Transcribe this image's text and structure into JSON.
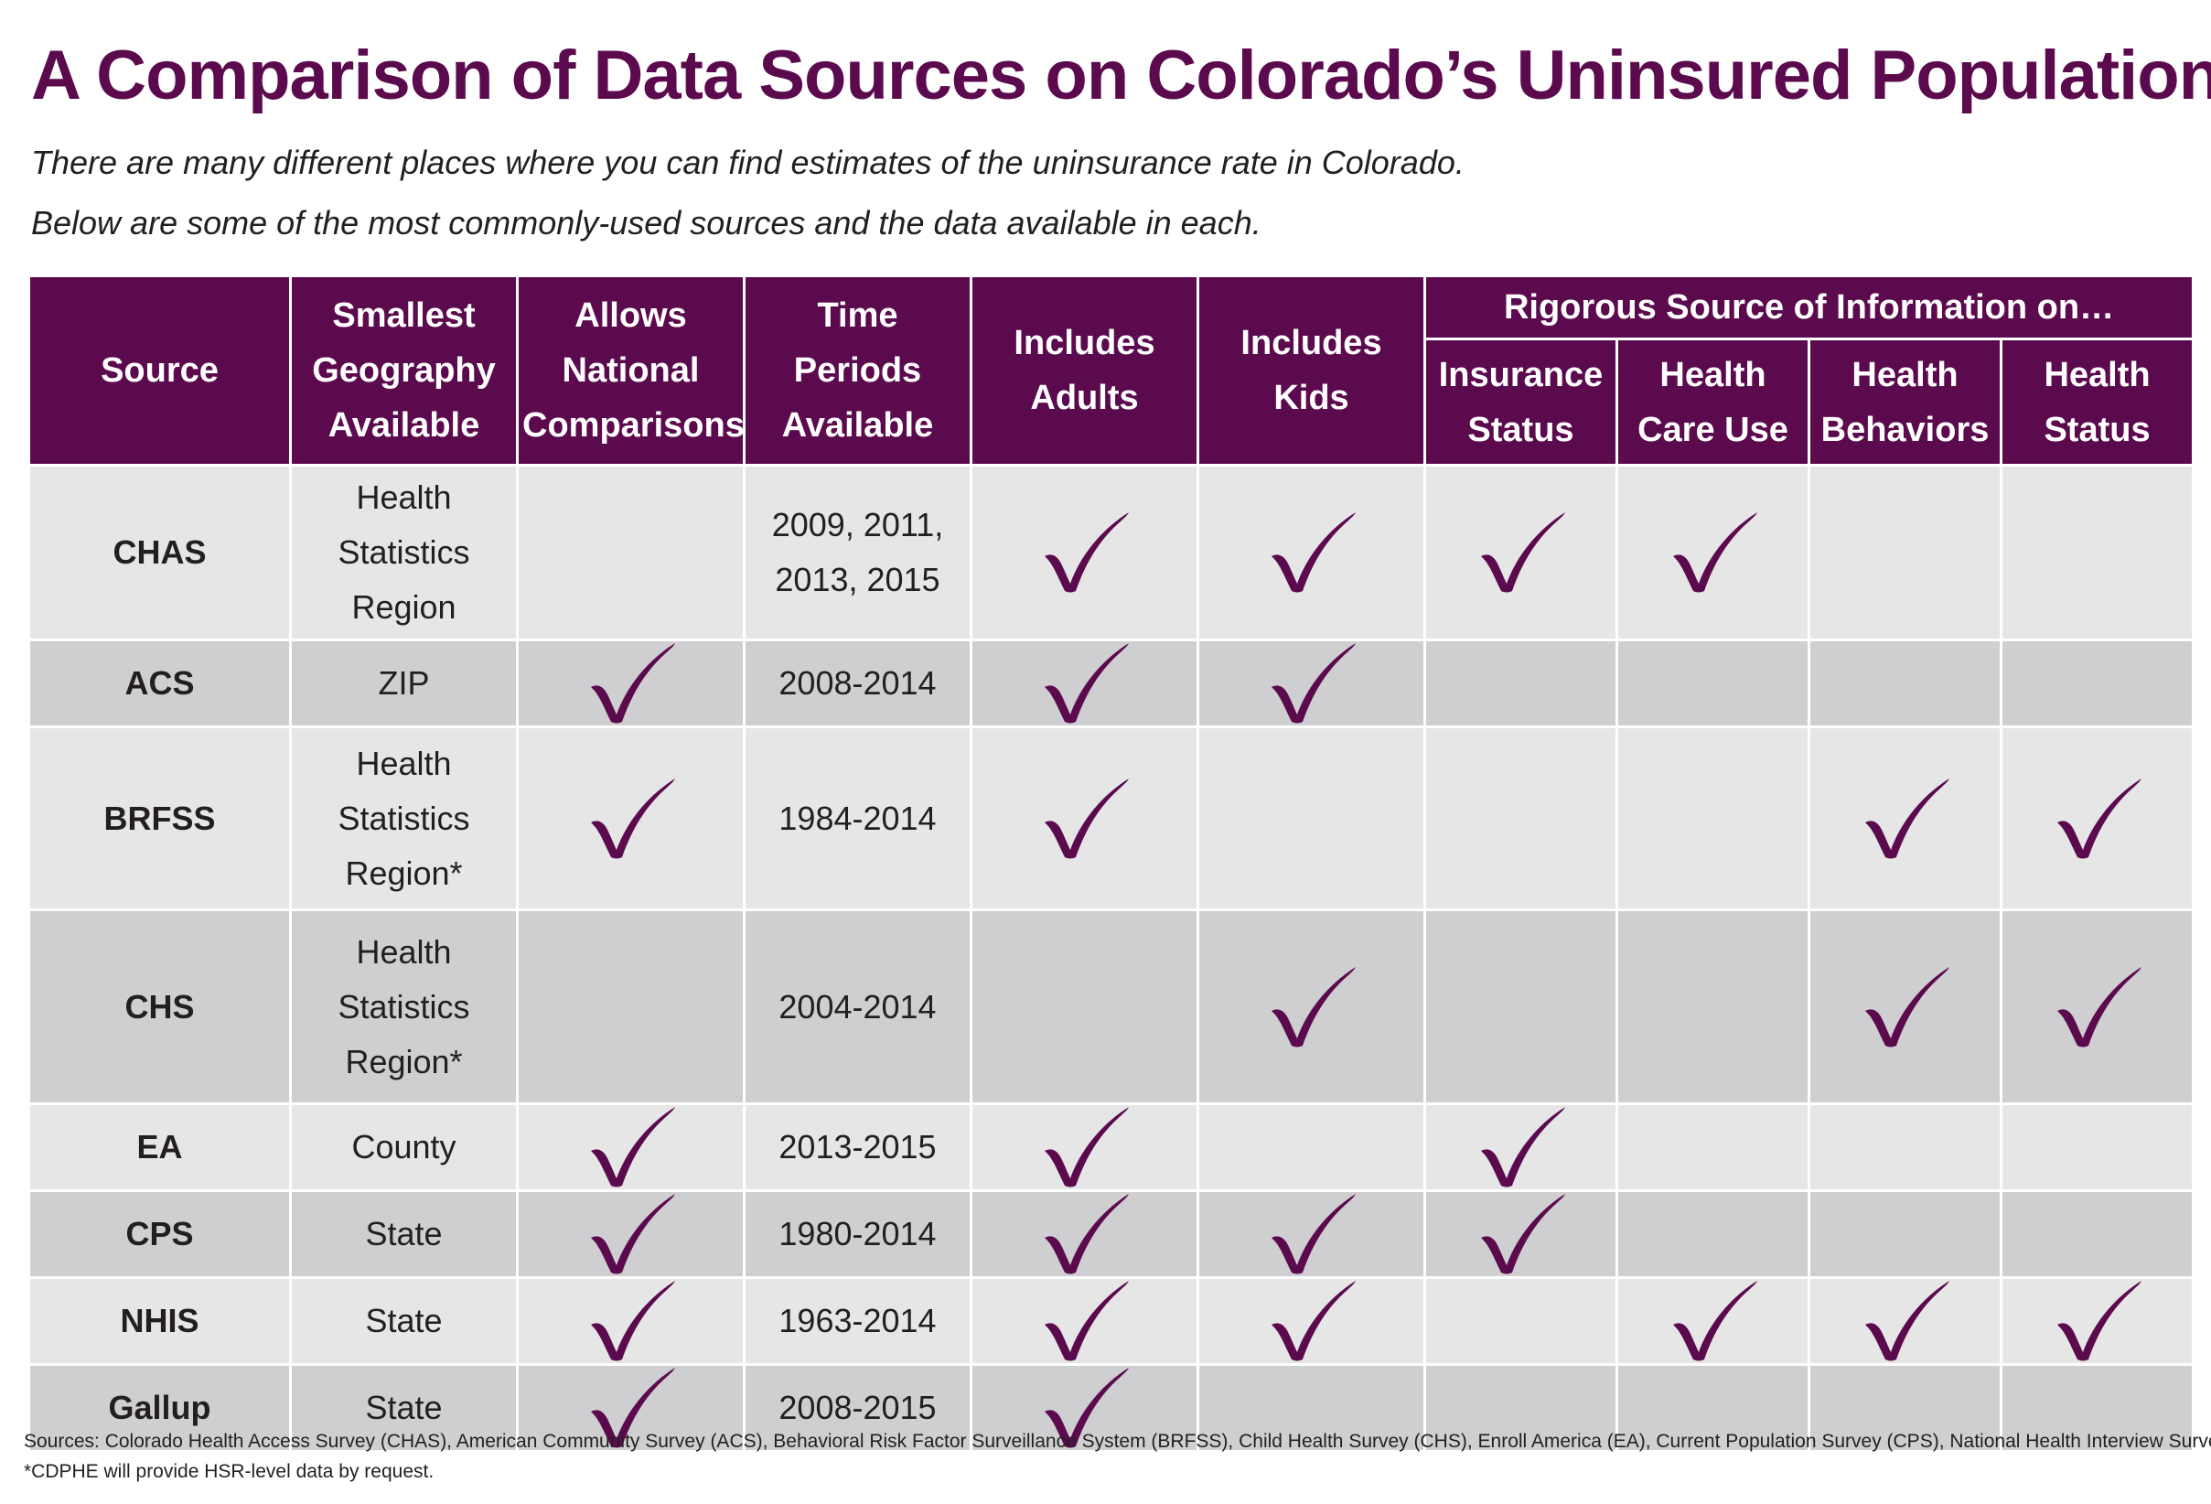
{
  "title": "A Comparison of Data Sources on Colorado’s Uninsured Population",
  "subtitle_lines": [
    "There are many different places where you can find estimates of the uninsurance rate in Colorado.",
    "Below are some of the most commonly-used sources and the data available in each."
  ],
  "table": {
    "group_header": "Rigorous Source of Information on…",
    "columns": [
      {
        "key": "source",
        "label_lines": [
          "Source"
        ]
      },
      {
        "key": "geography",
        "label_lines": [
          "Smallest",
          "Geography",
          "Available"
        ]
      },
      {
        "key": "national",
        "label_lines": [
          "Allows",
          "National",
          "Comparisons"
        ]
      },
      {
        "key": "periods",
        "label_lines": [
          "Time",
          "Periods",
          "Available"
        ]
      },
      {
        "key": "adults",
        "label_lines": [
          "Includes",
          "Adults"
        ]
      },
      {
        "key": "kids",
        "label_lines": [
          "Includes",
          "Kids"
        ]
      },
      {
        "key": "insurance",
        "label_lines": [
          "Insurance",
          "Status"
        ]
      },
      {
        "key": "care_use",
        "label_lines": [
          "Health",
          "Care Use"
        ]
      },
      {
        "key": "behaviors",
        "label_lines": [
          "Health",
          "Behaviors"
        ]
      },
      {
        "key": "status",
        "label_lines": [
          "Health",
          "Status"
        ]
      }
    ],
    "rows": [
      {
        "source": "CHAS",
        "geography_lines": [
          "Health",
          "Statistics",
          "Region"
        ],
        "periods_lines": [
          "2009, 2011,",
          "2013, 2015"
        ],
        "national": false,
        "adults": true,
        "kids": true,
        "insurance": true,
        "care_use": true,
        "behaviors": false,
        "status": false
      },
      {
        "source": "ACS",
        "geography_lines": [
          "ZIP"
        ],
        "periods_lines": [
          "2008-2014"
        ],
        "national": true,
        "adults": true,
        "kids": true,
        "insurance": false,
        "care_use": false,
        "behaviors": false,
        "status": false
      },
      {
        "source": "BRFSS",
        "geography_lines": [
          "Health",
          "Statistics",
          "Region*"
        ],
        "periods_lines": [
          "1984-2014"
        ],
        "national": true,
        "adults": true,
        "kids": false,
        "insurance": false,
        "care_use": false,
        "behaviors": true,
        "status": true
      },
      {
        "source": "CHS",
        "geography_lines": [
          "Health",
          "Statistics",
          "Region*"
        ],
        "periods_lines": [
          "2004-2014"
        ],
        "national": false,
        "adults": false,
        "kids": true,
        "insurance": false,
        "care_use": false,
        "behaviors": true,
        "status": true
      },
      {
        "source": "EA",
        "geography_lines": [
          "County"
        ],
        "periods_lines": [
          "2013-2015"
        ],
        "national": true,
        "adults": true,
        "kids": false,
        "insurance": true,
        "care_use": false,
        "behaviors": false,
        "status": false
      },
      {
        "source": "CPS",
        "geography_lines": [
          "State"
        ],
        "periods_lines": [
          "1980-2014"
        ],
        "national": true,
        "adults": true,
        "kids": true,
        "insurance": true,
        "care_use": false,
        "behaviors": false,
        "status": false
      },
      {
        "source": "NHIS",
        "geography_lines": [
          "State"
        ],
        "periods_lines": [
          "1963-2014"
        ],
        "national": true,
        "adults": true,
        "kids": true,
        "insurance": false,
        "care_use": true,
        "behaviors": true,
        "status": true
      },
      {
        "source": "Gallup",
        "geography_lines": [
          "State"
        ],
        "periods_lines": [
          "2008-2015"
        ],
        "national": true,
        "adults": true,
        "kids": false,
        "insurance": false,
        "care_use": false,
        "behaviors": false,
        "status": false
      }
    ]
  },
  "footnotes": [
    "Sources: Colorado Health Access Survey (CHAS), American Community Survey (ACS),  Behavioral Risk Factor Surveillance System (BRFSS), Child Health Survey (CHS), Enroll America (EA), Current Population Survey (CPS), National Health Interview Survey (NHIS)",
    "*CDPHE will provide HSR-level data by request."
  ],
  "colors": {
    "accent": "#5c0a4e",
    "row_light": "#e6e6e7",
    "row_dark": "#cfcfd1",
    "check": "#5c0a4e"
  },
  "icons": {
    "check": "checkmark-icon"
  }
}
